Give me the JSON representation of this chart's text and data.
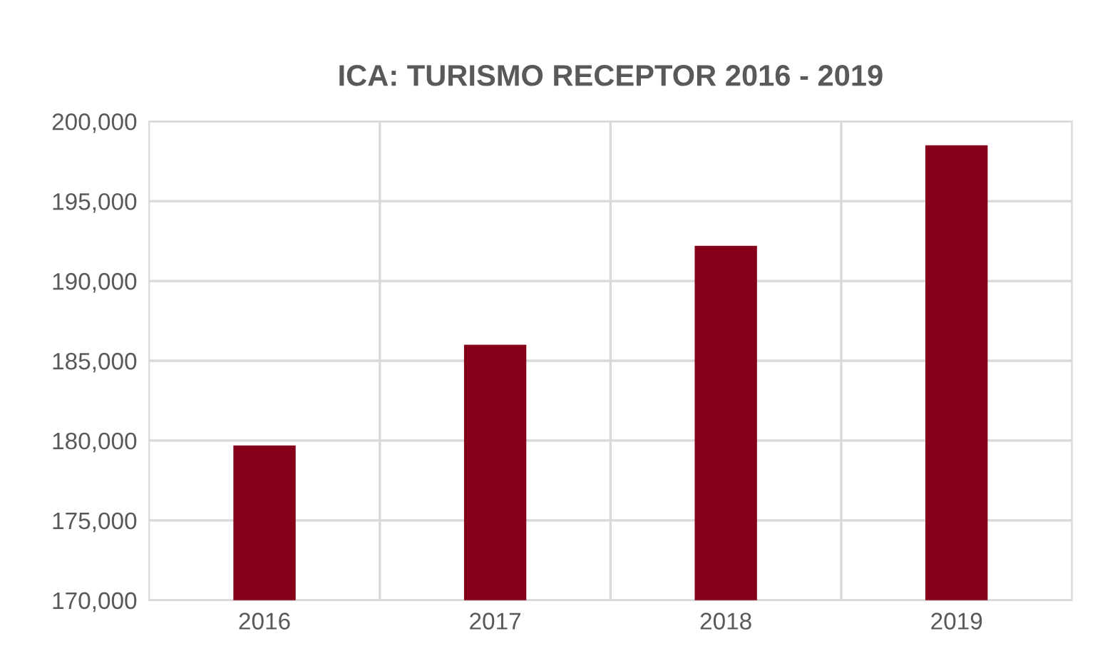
{
  "chart_data": {
    "type": "bar",
    "title": "ICA: TURISMO RECEPTOR 2016 - 2019",
    "categories": [
      "2016",
      "2017",
      "2018",
      "2019"
    ],
    "values": [
      179700,
      186000,
      192200,
      198500
    ],
    "color": "#860019",
    "ylim": [
      170000,
      200000
    ],
    "yticks": [
      {
        "value": 170000,
        "label": "170,000"
      },
      {
        "value": 175000,
        "label": "175,000"
      },
      {
        "value": 180000,
        "label": "180,000"
      },
      {
        "value": 185000,
        "label": "185,000"
      },
      {
        "value": 190000,
        "label": "190,000"
      },
      {
        "value": 195000,
        "label": "195,000"
      },
      {
        "value": 200000,
        "label": "200,000"
      }
    ],
    "grid": true
  }
}
